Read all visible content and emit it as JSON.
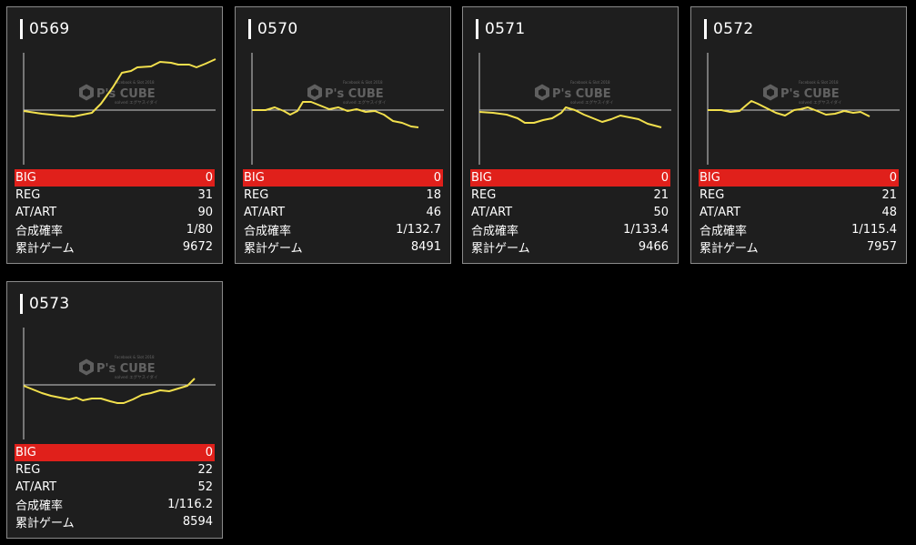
{
  "logo": {
    "top_text": "Facebook & Slot 2018",
    "brand": "P's CUBE",
    "sub_text": "solved エグヤスイダイ"
  },
  "colors": {
    "line": "#f2e04d",
    "big_row": "#e0201b",
    "card_bg": "#1e1e1e"
  },
  "labels": {
    "big": "BIG",
    "reg": "REG",
    "at": "AT/ART",
    "prob": "合成確率",
    "games": "累計ゲーム"
  },
  "machines": [
    {
      "id": "0569",
      "big": "0",
      "reg": "31",
      "at": "90",
      "prob": "1/80",
      "games": "9672"
    },
    {
      "id": "0570",
      "big": "0",
      "reg": "18",
      "at": "46",
      "prob": "1/132.7",
      "games": "8491"
    },
    {
      "id": "0571",
      "big": "0",
      "reg": "21",
      "at": "50",
      "prob": "1/133.4",
      "games": "9466"
    },
    {
      "id": "0572",
      "big": "0",
      "reg": "21",
      "at": "48",
      "prob": "1/115.4",
      "games": "7957"
    },
    {
      "id": "0573",
      "big": "0",
      "reg": "22",
      "at": "52",
      "prob": "1/116.2",
      "games": "8594"
    }
  ]
}
